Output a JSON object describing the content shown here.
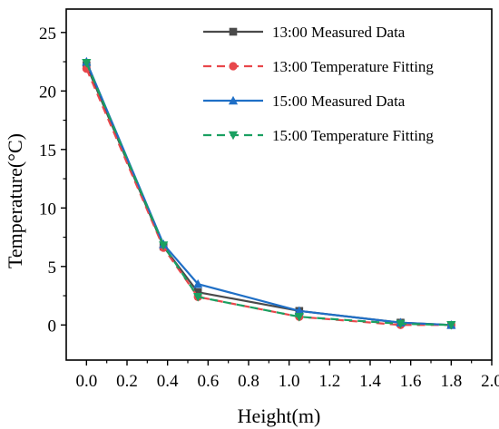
{
  "chart_data": {
    "type": "line",
    "title": "",
    "xlabel": "Height(m)",
    "ylabel": "Temperature(°C)",
    "xlim": [
      -0.1,
      2.0
    ],
    "ylim": [
      -3,
      27
    ],
    "xticks": [
      "0.0",
      "0.2",
      "0.4",
      "0.6",
      "0.8",
      "1.0",
      "1.2",
      "1.4",
      "1.6",
      "1.8",
      "2.0"
    ],
    "yticks": [
      "0",
      "5",
      "10",
      "15",
      "20",
      "25"
    ],
    "legend_position": "top-right",
    "grid": false,
    "x": [
      0.0,
      0.38,
      0.55,
      1.05,
      1.55,
      1.8
    ],
    "series": [
      {
        "name": "13:00 Measured Data",
        "values": [
          22.2,
          6.7,
          2.8,
          1.2,
          0.2,
          0.0
        ],
        "color": "#4a4a4a",
        "dash": "solid",
        "marker": "square"
      },
      {
        "name": "13:00 Temperature Fitting",
        "values": [
          21.9,
          6.6,
          2.4,
          0.7,
          0.0,
          0.0
        ],
        "color": "#e8474b",
        "dash": "dashed",
        "marker": "circle"
      },
      {
        "name": "15:00 Measured Data",
        "values": [
          22.5,
          6.9,
          3.5,
          1.2,
          0.2,
          0.0
        ],
        "color": "#1f6fc6",
        "dash": "solid",
        "marker": "triangle-up"
      },
      {
        "name": "15:00 Temperature Fitting",
        "values": [
          22.4,
          6.8,
          2.4,
          0.7,
          0.1,
          0.0
        ],
        "color": "#1aa061",
        "dash": "dashed",
        "marker": "triangle-down"
      }
    ]
  }
}
